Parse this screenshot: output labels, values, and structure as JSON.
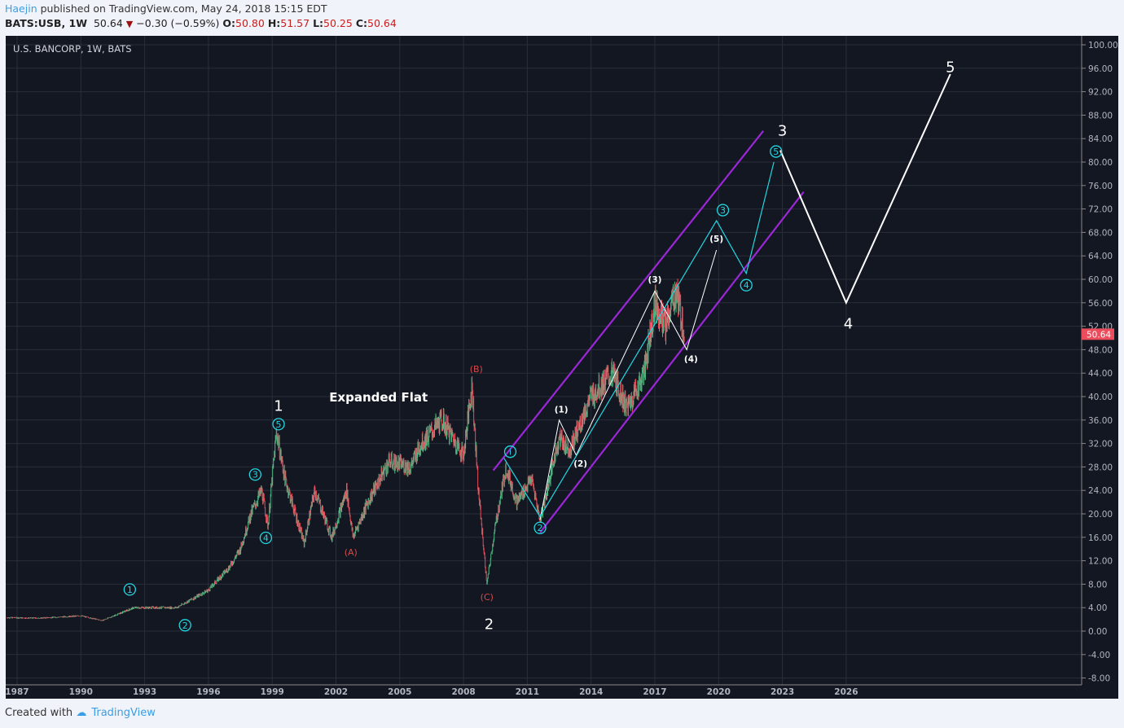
{
  "header": {
    "author": "Haejin",
    "published": "published on TradingView.com, May 24, 2018 15:15 EDT",
    "symbol": "BATS:USB, 1W",
    "last": "50.64",
    "change": "−0.30 (−0.59%)",
    "o_label": "O:",
    "o": "50.80",
    "h_label": "H:",
    "h": "51.57",
    "l_label": "L:",
    "l": "50.25",
    "c_label": "C:",
    "c": "50.64"
  },
  "footer": {
    "created": "Created with",
    "brand": "TradingView"
  },
  "chart_data": {
    "type": "line",
    "title": "U.S. BANCORP, 1W, BATS",
    "ylim": [
      -8,
      100
    ],
    "xlim": [
      1986.5,
      2038.6
    ],
    "yticks": [
      "100.00",
      "96.00",
      "92.00",
      "88.00",
      "84.00",
      "80.00",
      "76.00",
      "72.00",
      "68.00",
      "64.00",
      "60.00",
      "56.00",
      "52.00",
      "48.00",
      "44.00",
      "40.00",
      "36.00",
      "32.00",
      "28.00",
      "24.00",
      "20.00",
      "16.00",
      "12.00",
      "8.00",
      "4.00",
      "0.00",
      "-4.00",
      "-8.00"
    ],
    "xticks": [
      "1987",
      "1990",
      "1993",
      "1996",
      "1999",
      "2002",
      "2005",
      "2008",
      "2011",
      "2014",
      "2017",
      "2020",
      "2023",
      "2026"
    ],
    "last_price": "50.64",
    "price": [
      [
        1986.5,
        2.3
      ],
      [
        1988,
        2.2
      ],
      [
        1990,
        2.6
      ],
      [
        1991,
        1.8
      ],
      [
        1992.5,
        4.0
      ],
      [
        1994.5,
        4.0
      ],
      [
        1996,
        7
      ],
      [
        1997,
        11
      ],
      [
        1997.5,
        14
      ],
      [
        1998,
        20
      ],
      [
        1998.5,
        24
      ],
      [
        1998.8,
        18
      ],
      [
        1999.2,
        34
      ],
      [
        1999.6,
        26
      ],
      [
        2000.5,
        15
      ],
      [
        2001,
        24
      ],
      [
        2001.8,
        16
      ],
      [
        2002.5,
        24
      ],
      [
        2002.8,
        16
      ],
      [
        2003.5,
        22
      ],
      [
        2004.5,
        29
      ],
      [
        2005.5,
        28
      ],
      [
        2006,
        32
      ],
      [
        2007,
        36
      ],
      [
        2007.5,
        33
      ],
      [
        2008,
        30
      ],
      [
        2008.4,
        42
      ],
      [
        2008.7,
        24
      ],
      [
        2009.1,
        8
      ],
      [
        2009.5,
        18
      ],
      [
        2010,
        28
      ],
      [
        2010.5,
        22
      ],
      [
        2011.2,
        26
      ],
      [
        2011.6,
        19
      ],
      [
        2012.5,
        33
      ],
      [
        2013,
        31
      ],
      [
        2014,
        40
      ],
      [
        2015,
        44
      ],
      [
        2015.7,
        38
      ],
      [
        2016.5,
        44
      ],
      [
        2017,
        56
      ],
      [
        2017.5,
        52
      ],
      [
        2018,
        58
      ],
      [
        2018.4,
        50.6
      ]
    ],
    "channel": [
      [
        [
          2009.4,
          27.4
        ],
        [
          2022.1,
          85.3
        ]
      ],
      [
        [
          2011.6,
          16.8
        ],
        [
          2024.0,
          74.9
        ]
      ]
    ],
    "cyan_path": [
      [
        2009.9,
        29.5
      ],
      [
        2011.6,
        19.5
      ],
      [
        2019.9,
        70
      ],
      [
        2021.3,
        61
      ],
      [
        2022.6,
        80
      ]
    ],
    "white_sub": [
      [
        2011.6,
        19
      ],
      [
        2012.5,
        36
      ],
      [
        2013.3,
        30
      ],
      [
        2017,
        58
      ],
      [
        2018.5,
        48
      ],
      [
        2019.9,
        65
      ]
    ],
    "white_main": [
      [
        2022.9,
        82
      ],
      [
        2026,
        56
      ],
      [
        2030.9,
        95
      ]
    ],
    "colors": {
      "bg": "#131722",
      "up": "#53b987",
      "down": "#eb4d5c",
      "channel": "#9c27d8",
      "cyan": "#22d6e0",
      "white": "#ffffff",
      "red_label": "#d84a4a"
    },
    "labels": [
      {
        "t": "1",
        "x": 1999.3,
        "y": 38.5,
        "kind": "big"
      },
      {
        "t": "2",
        "x": 2009.2,
        "y": 1.25,
        "kind": "big"
      },
      {
        "t": "3",
        "x": 2023.0,
        "y": 85.4,
        "kind": "big"
      },
      {
        "t": "4",
        "x": 2026.1,
        "y": 52.5,
        "kind": "big"
      },
      {
        "t": "5",
        "x": 2030.9,
        "y": 96.25,
        "kind": "big"
      },
      {
        "t": "1",
        "x": 1992.3,
        "y": 7.1,
        "kind": "circle"
      },
      {
        "t": "2",
        "x": 1994.9,
        "y": 1.0,
        "kind": "circle"
      },
      {
        "t": "3",
        "x": 1998.2,
        "y": 26.7,
        "kind": "circle"
      },
      {
        "t": "4",
        "x": 1998.7,
        "y": 15.9,
        "kind": "circle"
      },
      {
        "t": "5",
        "x": 1999.3,
        "y": 35.3,
        "kind": "circle"
      },
      {
        "t": "i",
        "x": 2010.2,
        "y": 30.6,
        "kind": "circle"
      },
      {
        "t": "2",
        "x": 2011.6,
        "y": 17.6,
        "kind": "circle"
      },
      {
        "t": "3",
        "x": 2020.2,
        "y": 71.8,
        "kind": "circle"
      },
      {
        "t": "4",
        "x": 2021.3,
        "y": 59.0,
        "kind": "circle"
      },
      {
        "t": "5",
        "x": 2022.7,
        "y": 81.8,
        "kind": "circle"
      },
      {
        "t": "(A)",
        "x": 2002.7,
        "y": 13.5,
        "kind": "red"
      },
      {
        "t": "(B)",
        "x": 2008.6,
        "y": 44.7,
        "kind": "red"
      },
      {
        "t": "(C)",
        "x": 2009.1,
        "y": 5.8,
        "kind": "red"
      },
      {
        "t": "(1)",
        "x": 2012.6,
        "y": 37.8,
        "kind": "paren"
      },
      {
        "t": "(2)",
        "x": 2013.5,
        "y": 28.6,
        "kind": "paren"
      },
      {
        "t": "(3)",
        "x": 2017.0,
        "y": 60,
        "kind": "paren"
      },
      {
        "t": "(4)",
        "x": 2018.7,
        "y": 46.4,
        "kind": "paren"
      },
      {
        "t": "(5)",
        "x": 2019.9,
        "y": 66.9,
        "kind": "paren"
      },
      {
        "t": "Expanded Flat",
        "x": 2004.0,
        "y": 39.9,
        "kind": "note"
      }
    ]
  }
}
